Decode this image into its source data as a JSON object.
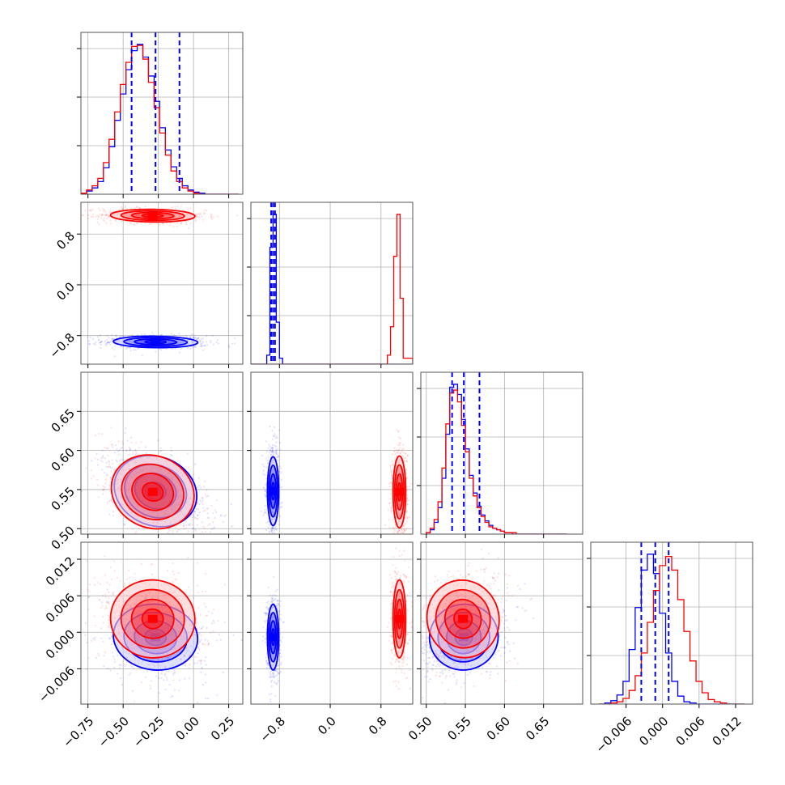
{
  "chart_data": {
    "type": "corner",
    "series_colors": {
      "blue": "#0000ff",
      "red": "#ff0000"
    },
    "grid": true,
    "params": [
      {
        "range": [
          -0.8,
          0.35
        ],
        "ticks": [
          -0.75,
          -0.5,
          -0.25,
          0.0,
          0.25
        ],
        "tick_labels": [
          "−0.75",
          "−0.50",
          "−0.25",
          "0.00",
          "0.25"
        ]
      },
      {
        "range": [
          -1.25,
          1.3
        ],
        "ticks": [
          -0.8,
          0.0,
          0.8
        ],
        "tick_labels": [
          "−0.8",
          "0.0",
          "0.8"
        ]
      },
      {
        "range": [
          0.493,
          0.7
        ],
        "ticks": [
          0.5,
          0.55,
          0.6,
          0.65
        ],
        "tick_labels": [
          "0.50",
          "0.55",
          "0.60",
          "0.65"
        ]
      },
      {
        "range": [
          -0.0118,
          0.0148
        ],
        "ticks": [
          -0.006,
          0.0,
          0.006,
          0.012
        ],
        "tick_labels": [
          "−0.006",
          "0.000",
          "0.006",
          "0.012"
        ]
      }
    ],
    "series": [
      {
        "color": "#0000ff",
        "center": [
          -0.27,
          -0.9,
          0.548,
          -0.0008
        ],
        "spread": [
          0.15,
          0.045,
          0.022,
          0.0027
        ],
        "quantiles": [
          [
            -0.44,
            -0.27,
            -0.1
          ],
          [
            -0.93,
            -0.9,
            -0.87
          ],
          [
            0.533,
            0.548,
            0.568
          ],
          [
            -0.0035,
            -0.0012,
            0.001
          ]
        ]
      },
      {
        "color": "#ff0000",
        "center": [
          -0.29,
          1.09,
          0.547,
          0.0022
        ],
        "spread": [
          0.15,
          0.05,
          0.023,
          0.0032
        ]
      }
    ],
    "histograms": [
      {
        "bins": [
          -0.8,
          -0.76,
          -0.72,
          -0.68,
          -0.64,
          -0.6,
          -0.56,
          -0.52,
          -0.48,
          -0.44,
          -0.4,
          -0.36,
          -0.32,
          -0.28,
          -0.24,
          -0.2,
          -0.16,
          -0.12,
          -0.08,
          -0.04,
          0.0,
          0.04,
          0.08,
          0.12,
          0.16,
          0.2,
          0.24,
          0.28,
          0.32
        ],
        "blue": [
          1,
          3,
          6,
          12,
          25,
          45,
          70,
          95,
          118,
          136,
          142,
          130,
          112,
          88,
          63,
          42,
          26,
          15,
          8,
          4,
          2,
          1,
          0,
          0,
          0,
          0,
          0,
          0
        ],
        "red": [
          1,
          4,
          8,
          15,
          30,
          52,
          78,
          104,
          125,
          140,
          141,
          128,
          106,
          82,
          58,
          37,
          22,
          12,
          6,
          3,
          1,
          0,
          0,
          0,
          0,
          0,
          0,
          0
        ]
      },
      {
        "bins": [
          -1.25,
          -1.0,
          -0.95,
          -0.9,
          -0.85,
          -0.8,
          -0.75,
          0.9,
          0.95,
          1.0,
          1.05,
          1.1,
          1.15,
          1.3
        ],
        "blue": [
          0,
          6,
          78,
          100,
          28,
          4,
          0,
          0,
          0,
          0,
          0,
          0,
          0
        ],
        "red": [
          0,
          0,
          0,
          0,
          0,
          0,
          0,
          6,
          25,
          72,
          100,
          44,
          4
        ]
      },
      {
        "bins": [
          0.5,
          0.505,
          0.51,
          0.515,
          0.52,
          0.525,
          0.53,
          0.535,
          0.54,
          0.545,
          0.55,
          0.555,
          0.56,
          0.565,
          0.57,
          0.575,
          0.58,
          0.585,
          0.59,
          0.595,
          0.6,
          0.605,
          0.61,
          0.615,
          0.62,
          0.625,
          0.63,
          0.635,
          0.64,
          0.645,
          0.65,
          0.655,
          0.66,
          0.665,
          0.67,
          0.675,
          0.68
        ],
        "blue": [
          1,
          3,
          8,
          18,
          38,
          68,
          100,
          102,
          95,
          78,
          58,
          40,
          28,
          19,
          13,
          9,
          6,
          4,
          3,
          2,
          1,
          1,
          0,
          0,
          0,
          0,
          0,
          0,
          0,
          0,
          0,
          0,
          0,
          0,
          0,
          0
        ],
        "red": [
          1,
          4,
          10,
          22,
          45,
          75,
          96,
          98,
          90,
          74,
          56,
          38,
          26,
          18,
          12,
          8,
          5,
          4,
          3,
          2,
          1,
          1,
          1,
          0,
          0,
          0,
          0,
          0,
          0,
          0,
          0,
          0,
          0,
          0,
          0,
          0
        ]
      },
      {
        "bins": [
          -0.0105,
          -0.0095,
          -0.0085,
          -0.0075,
          -0.0065,
          -0.0055,
          -0.0045,
          -0.0035,
          -0.0025,
          -0.0015,
          -0.0005,
          0.0005,
          0.0015,
          0.0025,
          0.0035,
          0.0045,
          0.0055,
          0.0065,
          0.0075,
          0.0085,
          0.0095,
          0.0105,
          0.0115,
          0.0125,
          0.0135
        ],
        "blue": [
          0,
          1,
          3,
          8,
          20,
          48,
          85,
          118,
          132,
          115,
          80,
          45,
          20,
          7,
          2,
          1,
          0,
          0,
          0,
          0,
          0,
          0,
          0,
          0
        ],
        "red": [
          0,
          0,
          1,
          2,
          5,
          12,
          25,
          45,
          72,
          100,
          122,
          130,
          118,
          92,
          64,
          38,
          20,
          10,
          4,
          2,
          1,
          0,
          0,
          0
        ]
      }
    ]
  }
}
